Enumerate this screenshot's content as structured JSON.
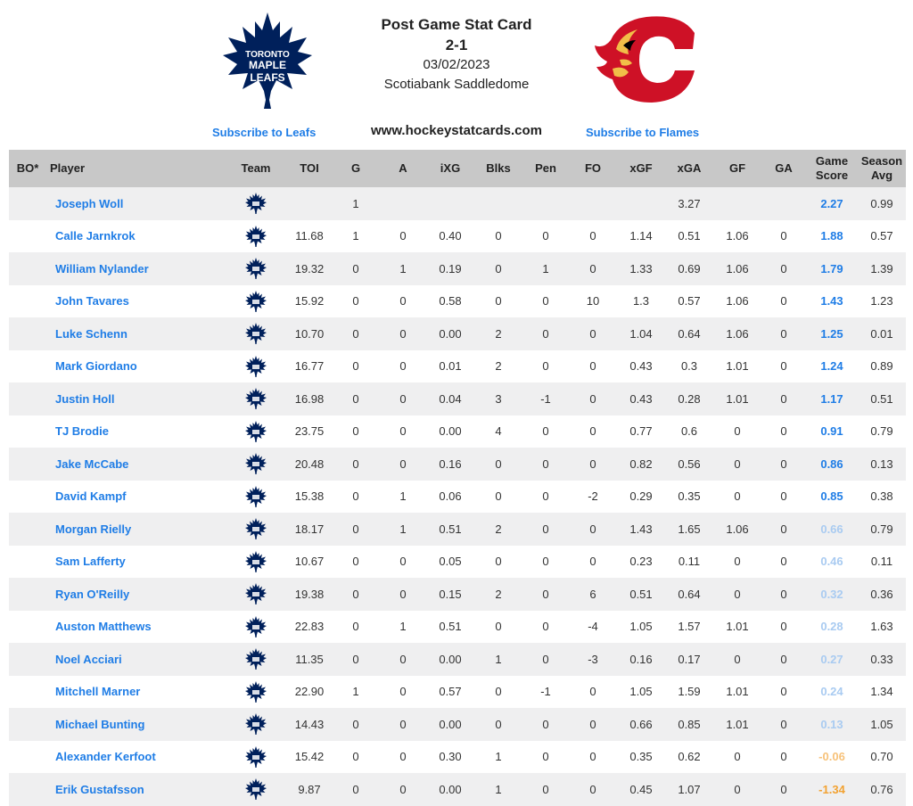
{
  "header": {
    "title": "Post Game Stat Card",
    "score": "2-1",
    "date": "03/02/2023",
    "venue": "Scotiabank Saddledome",
    "site": "www.hockeystatcards.com",
    "subscribe_left": "Subscribe to Leafs",
    "subscribe_right": "Subscribe to Flames",
    "leafs_logo_text": [
      "TORONTO",
      "MAPLE",
      "LEAFS"
    ]
  },
  "colors": {
    "link": "#1f7de6",
    "header_bg": "#c8c8c8",
    "gs_strong": "#1f7de6",
    "gs_faded": "#a9cbf1",
    "gs_neg_light": "#f7c27a",
    "gs_neg": "#f2a232",
    "leafs_blue": "#00205b",
    "flames_red": "#ce1126",
    "flames_yellow": "#f1be48"
  },
  "table": {
    "headers": {
      "bo": "BO*",
      "player": "Player",
      "team": "Team",
      "toi": "TOI",
      "g": "G",
      "a": "A",
      "ixg": "iXG",
      "blks": "Blks",
      "pen": "Pen",
      "fo": "FO",
      "xgf": "xGF",
      "xga": "xGA",
      "gf": "GF",
      "ga": "GA",
      "game_score_1": "Game",
      "game_score_2": "Score",
      "season_avg_1": "Season",
      "season_avg_2": "Avg"
    },
    "rows": [
      {
        "player": "Joseph Woll",
        "toi": "",
        "g": "1",
        "a": "",
        "ixg": "",
        "blks": "",
        "pen": "",
        "fo": "",
        "xgf": "",
        "xga": "3.27",
        "gf": "",
        "ga": "",
        "gs": "2.27",
        "avg": "0.99",
        "gs_color": "#1f7de6"
      },
      {
        "player": "Calle Jarnkrok",
        "toi": "11.68",
        "g": "1",
        "a": "0",
        "ixg": "0.40",
        "blks": "0",
        "pen": "0",
        "fo": "0",
        "xgf": "1.14",
        "xga": "0.51",
        "gf": "1.06",
        "ga": "0",
        "gs": "1.88",
        "avg": "0.57",
        "gs_color": "#1f7de6"
      },
      {
        "player": "William Nylander",
        "toi": "19.32",
        "g": "0",
        "a": "1",
        "ixg": "0.19",
        "blks": "0",
        "pen": "1",
        "fo": "0",
        "xgf": "1.33",
        "xga": "0.69",
        "gf": "1.06",
        "ga": "0",
        "gs": "1.79",
        "avg": "1.39",
        "gs_color": "#1f7de6"
      },
      {
        "player": "John Tavares",
        "toi": "15.92",
        "g": "0",
        "a": "0",
        "ixg": "0.58",
        "blks": "0",
        "pen": "0",
        "fo": "10",
        "xgf": "1.3",
        "xga": "0.57",
        "gf": "1.06",
        "ga": "0",
        "gs": "1.43",
        "avg": "1.23",
        "gs_color": "#1f7de6"
      },
      {
        "player": "Luke Schenn",
        "toi": "10.70",
        "g": "0",
        "a": "0",
        "ixg": "0.00",
        "blks": "2",
        "pen": "0",
        "fo": "0",
        "xgf": "1.04",
        "xga": "0.64",
        "gf": "1.06",
        "ga": "0",
        "gs": "1.25",
        "avg": "0.01",
        "gs_color": "#1f7de6"
      },
      {
        "player": "Mark Giordano",
        "toi": "16.77",
        "g": "0",
        "a": "0",
        "ixg": "0.01",
        "blks": "2",
        "pen": "0",
        "fo": "0",
        "xgf": "0.43",
        "xga": "0.3",
        "gf": "1.01",
        "ga": "0",
        "gs": "1.24",
        "avg": "0.89",
        "gs_color": "#1f7de6"
      },
      {
        "player": "Justin Holl",
        "toi": "16.98",
        "g": "0",
        "a": "0",
        "ixg": "0.04",
        "blks": "3",
        "pen": "-1",
        "fo": "0",
        "xgf": "0.43",
        "xga": "0.28",
        "gf": "1.01",
        "ga": "0",
        "gs": "1.17",
        "avg": "0.51",
        "gs_color": "#1f7de6"
      },
      {
        "player": "TJ Brodie",
        "toi": "23.75",
        "g": "0",
        "a": "0",
        "ixg": "0.00",
        "blks": "4",
        "pen": "0",
        "fo": "0",
        "xgf": "0.77",
        "xga": "0.6",
        "gf": "0",
        "ga": "0",
        "gs": "0.91",
        "avg": "0.79",
        "gs_color": "#1f7de6"
      },
      {
        "player": "Jake McCabe",
        "toi": "20.48",
        "g": "0",
        "a": "0",
        "ixg": "0.16",
        "blks": "0",
        "pen": "0",
        "fo": "0",
        "xgf": "0.82",
        "xga": "0.56",
        "gf": "0",
        "ga": "0",
        "gs": "0.86",
        "avg": "0.13",
        "gs_color": "#1f7de6"
      },
      {
        "player": "David Kampf",
        "toi": "15.38",
        "g": "0",
        "a": "1",
        "ixg": "0.06",
        "blks": "0",
        "pen": "0",
        "fo": "-2",
        "xgf": "0.29",
        "xga": "0.35",
        "gf": "0",
        "ga": "0",
        "gs": "0.85",
        "avg": "0.38",
        "gs_color": "#1f7de6"
      },
      {
        "player": "Morgan Rielly",
        "toi": "18.17",
        "g": "0",
        "a": "1",
        "ixg": "0.51",
        "blks": "2",
        "pen": "0",
        "fo": "0",
        "xgf": "1.43",
        "xga": "1.65",
        "gf": "1.06",
        "ga": "0",
        "gs": "0.66",
        "avg": "0.79",
        "gs_color": "#a9cbf1"
      },
      {
        "player": "Sam Lafferty",
        "toi": "10.67",
        "g": "0",
        "a": "0",
        "ixg": "0.05",
        "blks": "0",
        "pen": "0",
        "fo": "0",
        "xgf": "0.23",
        "xga": "0.11",
        "gf": "0",
        "ga": "0",
        "gs": "0.46",
        "avg": "0.11",
        "gs_color": "#a9cbf1"
      },
      {
        "player": "Ryan O'Reilly",
        "toi": "19.38",
        "g": "0",
        "a": "0",
        "ixg": "0.15",
        "blks": "2",
        "pen": "0",
        "fo": "6",
        "xgf": "0.51",
        "xga": "0.64",
        "gf": "0",
        "ga": "0",
        "gs": "0.32",
        "avg": "0.36",
        "gs_color": "#a9cbf1"
      },
      {
        "player": "Auston Matthews",
        "toi": "22.83",
        "g": "0",
        "a": "1",
        "ixg": "0.51",
        "blks": "0",
        "pen": "0",
        "fo": "-4",
        "xgf": "1.05",
        "xga": "1.57",
        "gf": "1.01",
        "ga": "0",
        "gs": "0.28",
        "avg": "1.63",
        "gs_color": "#a9cbf1"
      },
      {
        "player": "Noel Acciari",
        "toi": "11.35",
        "g": "0",
        "a": "0",
        "ixg": "0.00",
        "blks": "1",
        "pen": "0",
        "fo": "-3",
        "xgf": "0.16",
        "xga": "0.17",
        "gf": "0",
        "ga": "0",
        "gs": "0.27",
        "avg": "0.33",
        "gs_color": "#a9cbf1"
      },
      {
        "player": "Mitchell Marner",
        "toi": "22.90",
        "g": "1",
        "a": "0",
        "ixg": "0.57",
        "blks": "0",
        "pen": "-1",
        "fo": "0",
        "xgf": "1.05",
        "xga": "1.59",
        "gf": "1.01",
        "ga": "0",
        "gs": "0.24",
        "avg": "1.34",
        "gs_color": "#a9cbf1"
      },
      {
        "player": "Michael Bunting",
        "toi": "14.43",
        "g": "0",
        "a": "0",
        "ixg": "0.00",
        "blks": "0",
        "pen": "0",
        "fo": "0",
        "xgf": "0.66",
        "xga": "0.85",
        "gf": "1.01",
        "ga": "0",
        "gs": "0.13",
        "avg": "1.05",
        "gs_color": "#a9cbf1"
      },
      {
        "player": "Alexander Kerfoot",
        "toi": "15.42",
        "g": "0",
        "a": "0",
        "ixg": "0.30",
        "blks": "1",
        "pen": "0",
        "fo": "0",
        "xgf": "0.35",
        "xga": "0.62",
        "gf": "0",
        "ga": "0",
        "gs": "-0.06",
        "avg": "0.70",
        "gs_color": "#f7c27a"
      },
      {
        "player": "Erik Gustafsson",
        "toi": "9.87",
        "g": "0",
        "a": "0",
        "ixg": "0.00",
        "blks": "1",
        "pen": "0",
        "fo": "0",
        "xgf": "0.45",
        "xga": "1.07",
        "gf": "0",
        "ga": "0",
        "gs": "-1.34",
        "avg": "0.76",
        "gs_color": "#f2a232"
      }
    ]
  }
}
